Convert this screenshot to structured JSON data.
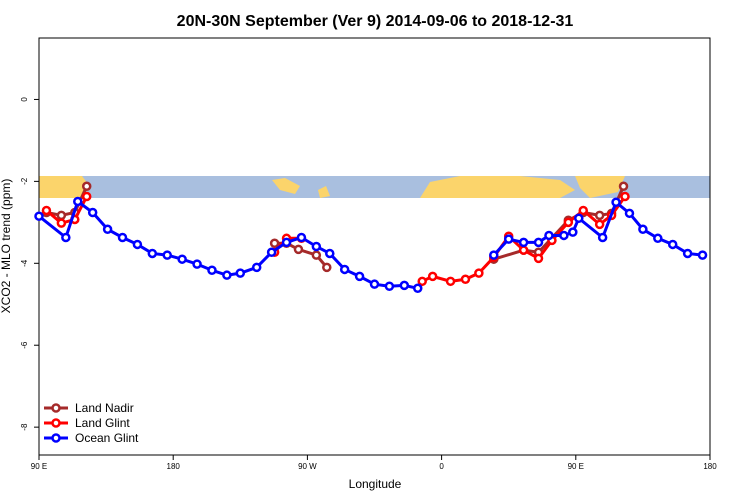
{
  "chart_data": {
    "type": "line",
    "title": "20N-30N September (Ver 9)   2014-09-06 to 2018-12-31",
    "x_label": "Longitude",
    "y_label": "XCO2 - MLO trend (ppm)",
    "xlim": [
      90,
      540
    ],
    "ylim": [
      -8.68,
      1.5
    ],
    "xticks": [
      {
        "value": 90,
        "label": "90 E"
      },
      180,
      {
        "value": 270,
        "label": "90 W"
      },
      {
        "value": 360,
        "label": "0"
      },
      {
        "value": 450,
        "label": "90 E"
      },
      {
        "value": 540,
        "label": "180"
      }
    ],
    "yticks": [
      0,
      -2,
      -4,
      -6,
      -8
    ],
    "legend": "bottom-left",
    "series": [
      {
        "name": "Land Nadir",
        "color": "#a52a2a",
        "x": [
          95,
          105,
          114,
          122,
          null,
          248,
          256,
          264,
          276,
          283,
          null,
          395,
          415,
          425,
          445,
          455,
          466,
          474,
          482
        ],
        "values": [
          -2.76,
          -2.83,
          -2.76,
          -2.12,
          null,
          -3.51,
          -3.51,
          -3.66,
          -3.8,
          -4.1,
          null,
          -3.9,
          -3.68,
          -3.73,
          -2.95,
          -2.76,
          -2.83,
          -2.78,
          -2.12
        ]
      },
      {
        "name": "Land Glint",
        "color": "#ff0000",
        "x": [
          95,
          105,
          114,
          122,
          null,
          248,
          256,
          266,
          null,
          347,
          354,
          366,
          376,
          385,
          395,
          405,
          415,
          425,
          434,
          445,
          455,
          466,
          474,
          483
        ],
        "values": [
          -2.71,
          -3.02,
          -2.93,
          -2.37,
          null,
          -3.73,
          -3.39,
          -3.39,
          null,
          -4.44,
          -4.32,
          -4.44,
          -4.39,
          -4.24,
          -3.85,
          -3.34,
          -3.68,
          -3.88,
          -3.44,
          -3.0,
          -2.71,
          -3.05,
          -2.83,
          -2.37
        ]
      },
      {
        "name": "Ocean Glint",
        "color": "#0000ff",
        "x": [
          90,
          108,
          116,
          126,
          136,
          146,
          156,
          166,
          176,
          186,
          196,
          206,
          216,
          225,
          236,
          246,
          256,
          266,
          276,
          285,
          295,
          305,
          315,
          325,
          335,
          344,
          null,
          395,
          405,
          415,
          425,
          432,
          442,
          448,
          452,
          468,
          477,
          486,
          495,
          505,
          515,
          525,
          535
        ],
        "values": [
          -2.85,
          -3.37,
          -2.49,
          -2.76,
          -3.17,
          -3.37,
          -3.54,
          -3.76,
          -3.8,
          -3.9,
          -4.02,
          -4.17,
          -4.29,
          -4.24,
          -4.1,
          -3.73,
          -3.49,
          -3.37,
          -3.59,
          -3.76,
          -4.15,
          -4.32,
          -4.51,
          -4.56,
          -4.54,
          -4.61,
          null,
          -3.8,
          -3.41,
          -3.49,
          -3.49,
          -3.32,
          -3.32,
          -3.24,
          -2.9,
          -3.37,
          -2.51,
          -2.78,
          -3.17,
          -3.39,
          -3.54,
          -3.76,
          -3.8
        ]
      }
    ]
  }
}
